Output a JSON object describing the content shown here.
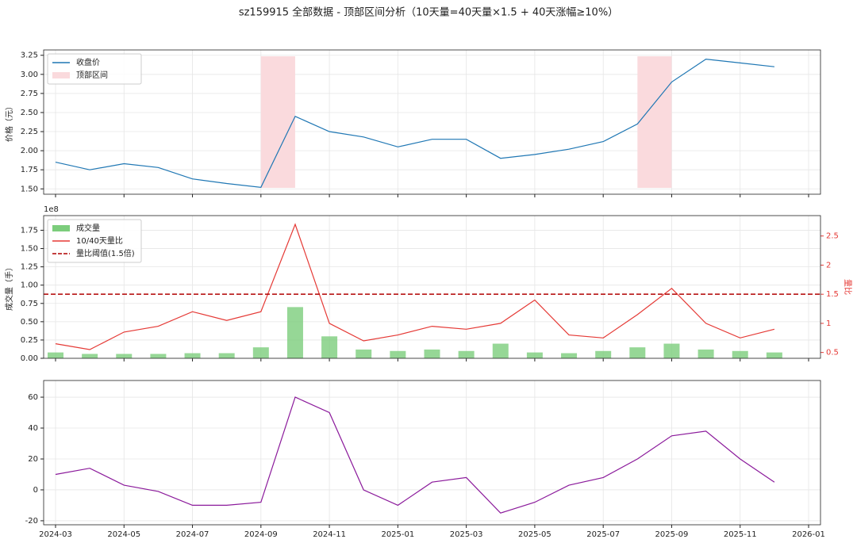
{
  "title": "sz159915 全部数据 - 顶部区间分析（10天量=40天量×1.5 + 40天涨幅≥10%）",
  "chart_data": [
    {
      "type": "line",
      "ylabel": "价格（元）",
      "x": [
        "2024-03",
        "2024-04",
        "2024-05",
        "2024-06",
        "2024-07",
        "2024-08",
        "2024-09",
        "2024-10",
        "2024-11",
        "2024-12",
        "2025-01",
        "2025-02",
        "2025-03",
        "2025-04",
        "2025-05",
        "2025-06",
        "2025-07",
        "2025-08",
        "2025-09",
        "2025-10",
        "2025-11",
        "2025-12"
      ],
      "series": [
        {
          "name": "收盘价",
          "color": "#1f77b4",
          "values": [
            1.85,
            1.75,
            1.83,
            1.78,
            1.63,
            1.57,
            1.52,
            2.45,
            2.25,
            2.18,
            2.05,
            2.15,
            2.15,
            1.9,
            1.95,
            2.02,
            2.12,
            2.35,
            2.9,
            3.2,
            3.15,
            3.1
          ]
        }
      ],
      "zones": {
        "name": "顶部区间",
        "color": "#fadadd",
        "spans": [
          [
            "2024-09",
            "2024-10"
          ],
          [
            "2025-08",
            "2025-09"
          ]
        ]
      },
      "xlim": [
        "2024-03",
        "2026-01"
      ],
      "ylim": [
        1.43,
        3.32
      ],
      "yticks": [
        {
          "value": 1.5,
          "label": "1.50"
        },
        {
          "value": 1.75,
          "label": "1.75"
        },
        {
          "value": 2,
          "label": "2.00"
        },
        {
          "value": 2.25,
          "label": "2.25"
        },
        {
          "value": 2.5,
          "label": "2.50"
        },
        {
          "value": 2.75,
          "label": "2.75"
        },
        {
          "value": 3,
          "label": "3.00"
        },
        {
          "value": 3.25,
          "label": "3.25"
        }
      ],
      "grid": true,
      "legend": "upper left"
    },
    {
      "type": "bar",
      "ylabel": "成交量（手）",
      "y2label": "量比",
      "y_offset_label": "1e8",
      "x": [
        "2024-03",
        "2024-04",
        "2024-05",
        "2024-06",
        "2024-07",
        "2024-08",
        "2024-09",
        "2024-10",
        "2024-11",
        "2024-12",
        "2025-01",
        "2025-02",
        "2025-03",
        "2025-04",
        "2025-05",
        "2025-06",
        "2025-07",
        "2025-08",
        "2025-09",
        "2025-10",
        "2025-11",
        "2025-12"
      ],
      "series": [
        {
          "name": "成交量",
          "color": "#7ccd7c",
          "values": [
            0.08,
            0.06,
            0.06,
            0.06,
            0.07,
            0.07,
            0.15,
            0.7,
            0.3,
            0.12,
            0.1,
            0.12,
            0.1,
            0.2,
            0.08,
            0.07,
            0.1,
            0.15,
            0.2,
            0.12,
            0.1,
            0.08
          ]
        },
        {
          "name": "10/40天量比",
          "color": "#e53935",
          "axis": "y2",
          "values": [
            0.65,
            0.55,
            0.85,
            0.95,
            1.2,
            1.05,
            1.2,
            2.7,
            1.0,
            0.7,
            0.8,
            0.95,
            0.9,
            1.0,
            1.4,
            0.8,
            0.75,
            1.15,
            1.6,
            1.0,
            0.75,
            0.9
          ]
        }
      ],
      "threshold": {
        "name": "量比阈值(1.5倍)",
        "value": 1.5,
        "color": "#b00000",
        "axis": "y2"
      },
      "xlim": [
        "2024-03",
        "2026-01"
      ],
      "ylim": [
        0,
        1.95
      ],
      "yticks": [
        {
          "value": 0,
          "label": "0.00"
        },
        {
          "value": 0.25,
          "label": "0.25"
        },
        {
          "value": 0.5,
          "label": "0.50"
        },
        {
          "value": 0.75,
          "label": "0.75"
        },
        {
          "value": 1,
          "label": "1.00"
        },
        {
          "value": 1.25,
          "label": "1.25"
        },
        {
          "value": 1.5,
          "label": "1.50"
        },
        {
          "value": 1.75,
          "label": "1.75"
        }
      ],
      "y2lim": [
        0.4,
        2.85
      ],
      "y2ticks": [
        0.5,
        1.0,
        1.5,
        2.0,
        2.5
      ],
      "grid": true,
      "legend": "upper left"
    },
    {
      "type": "line",
      "x": [
        "2024-03",
        "2024-04",
        "2024-05",
        "2024-06",
        "2024-07",
        "2024-08",
        "2024-09",
        "2024-10",
        "2024-11",
        "2024-12",
        "2025-01",
        "2025-02",
        "2025-03",
        "2025-04",
        "2025-05",
        "2025-06",
        "2025-07",
        "2025-08",
        "2025-09",
        "2025-10",
        "2025-11",
        "2025-12"
      ],
      "series": [
        {
          "color": "#8b1a9b",
          "values": [
            10,
            14,
            3,
            -1,
            -10,
            -10,
            -8,
            60,
            50,
            0,
            -10,
            5,
            8,
            -15,
            -8,
            3,
            8,
            20,
            35,
            38,
            20,
            5
          ]
        }
      ],
      "xlim": [
        "2024-03",
        "2026-01"
      ],
      "ylim": [
        -22.6,
        70.8
      ],
      "yticks": [
        -20,
        0,
        20,
        40,
        60
      ],
      "xticks": [
        "2024-03",
        "2024-05",
        "2024-07",
        "2024-09",
        "2024-11",
        "2025-01",
        "2025-03",
        "2025-05",
        "2025-07",
        "2025-09",
        "2025-11",
        "2026-01"
      ],
      "grid": true
    }
  ]
}
